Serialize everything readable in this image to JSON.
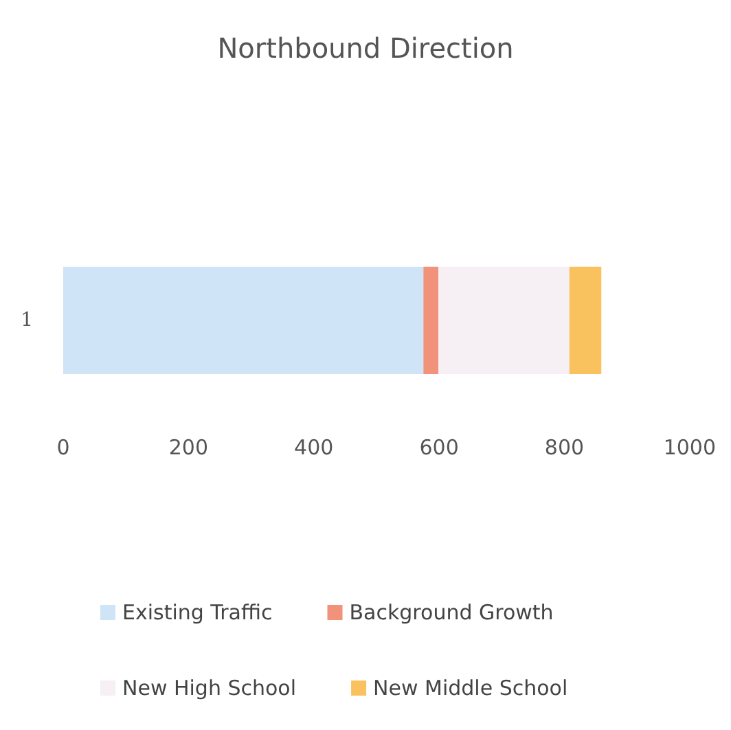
{
  "chart_data": {
    "type": "bar",
    "title": "Northbound Direction",
    "orientation": "horizontal",
    "stacked": true,
    "categories": [
      "1"
    ],
    "series": [
      {
        "name": "Existing Traffic",
        "color": "#cfe4f7",
        "values": [
          575
        ]
      },
      {
        "name": "Background Growth",
        "color": "#f0937a",
        "values": [
          24
        ]
      },
      {
        "name": "New High School",
        "color": "#f6eff3",
        "values": [
          209
        ]
      },
      {
        "name": "New Middle School",
        "color": "#f9c25e",
        "values": [
          51
        ]
      }
    ],
    "xlim": [
      0,
      1000
    ],
    "xticks": [
      0,
      200,
      400,
      600,
      800,
      1000
    ],
    "grid": false,
    "legend": "bottom"
  }
}
